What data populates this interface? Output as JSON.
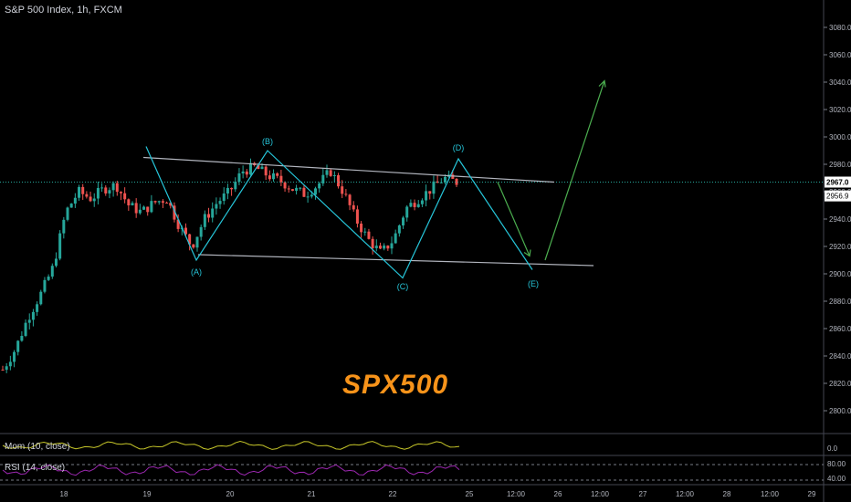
{
  "header": {
    "title": "S&P 500 Index, 1h, FXCM"
  },
  "watermark": "SPX500",
  "colors": {
    "background": "#000000",
    "up_candle": "#26a69a",
    "down_candle": "#ef5350",
    "channel": "#b2b5be",
    "wave": "#26c6da",
    "forecast": "#4caf50",
    "momentum": "#c6c629",
    "rsi": "#9c27b0",
    "last_price_bg": "#ffffff"
  },
  "price_badges": {
    "last": "2967.0",
    "other": "2956.9"
  },
  "indicators": {
    "momentum": {
      "label": "Mom (10, close)",
      "ticks": [
        "0.0"
      ]
    },
    "rsi": {
      "label": "RSI (14, close)",
      "ticks": [
        "80.00",
        "40.00"
      ],
      "levels": [
        70,
        30
      ]
    }
  },
  "wave_labels": [
    "(A)",
    "(B)",
    "(C)",
    "(D)",
    "(E)"
  ],
  "chart_data": {
    "type": "candlestick",
    "title": "S&P 500 Index, 1h, FXCM",
    "y_axis": {
      "ticks": [
        2800,
        2820,
        2840,
        2860,
        2880,
        2900,
        2920,
        2940,
        2960,
        2980,
        3000,
        3020,
        3040,
        3060,
        3080
      ],
      "tick_labels": [
        "2800.0",
        "2820.0",
        "2840.0",
        "2860.0",
        "2880.0",
        "2900.0",
        "2920.0",
        "2940.0",
        "2960.0",
        "2980.0",
        "3000.0",
        "3020.0",
        "3040.0",
        "3060.0",
        "3080.0"
      ],
      "range": [
        2787,
        3090
      ]
    },
    "x_axis": {
      "tick_labels": [
        "18",
        "19",
        "20",
        "21",
        "22",
        "25",
        "12:00",
        "26",
        "12:00",
        "27",
        "12:00",
        "28",
        "12:00",
        "29"
      ]
    },
    "approx_close_path": [
      2830,
      2845,
      2868,
      2885,
      2905,
      2945,
      2960,
      2955,
      2962,
      2965,
      2950,
      2945,
      2952,
      2955,
      2935,
      2920,
      2940,
      2952,
      2960,
      2975,
      2978,
      2972,
      2968,
      2962,
      2958,
      2965,
      2975,
      2960,
      2940,
      2925,
      2915,
      2925,
      2948,
      2955,
      2962,
      2970,
      2967
    ],
    "wave_points": [
      {
        "label": "start",
        "value": 2993
      },
      {
        "label": "(A)",
        "value": 2910
      },
      {
        "label": "(B)",
        "value": 2990
      },
      {
        "label": "(C)",
        "value": 2897
      },
      {
        "label": "(D)",
        "value": 2984
      },
      {
        "label": "(E)",
        "value": 2903
      }
    ],
    "channel": {
      "upper": {
        "start": 2985,
        "end": 2967
      },
      "lower": {
        "start": 2914,
        "end": 2906
      }
    },
    "forecast": [
      {
        "value": 2967
      },
      {
        "value": 2913
      },
      {
        "value": 2910
      },
      {
        "value": 3041
      }
    ]
  }
}
